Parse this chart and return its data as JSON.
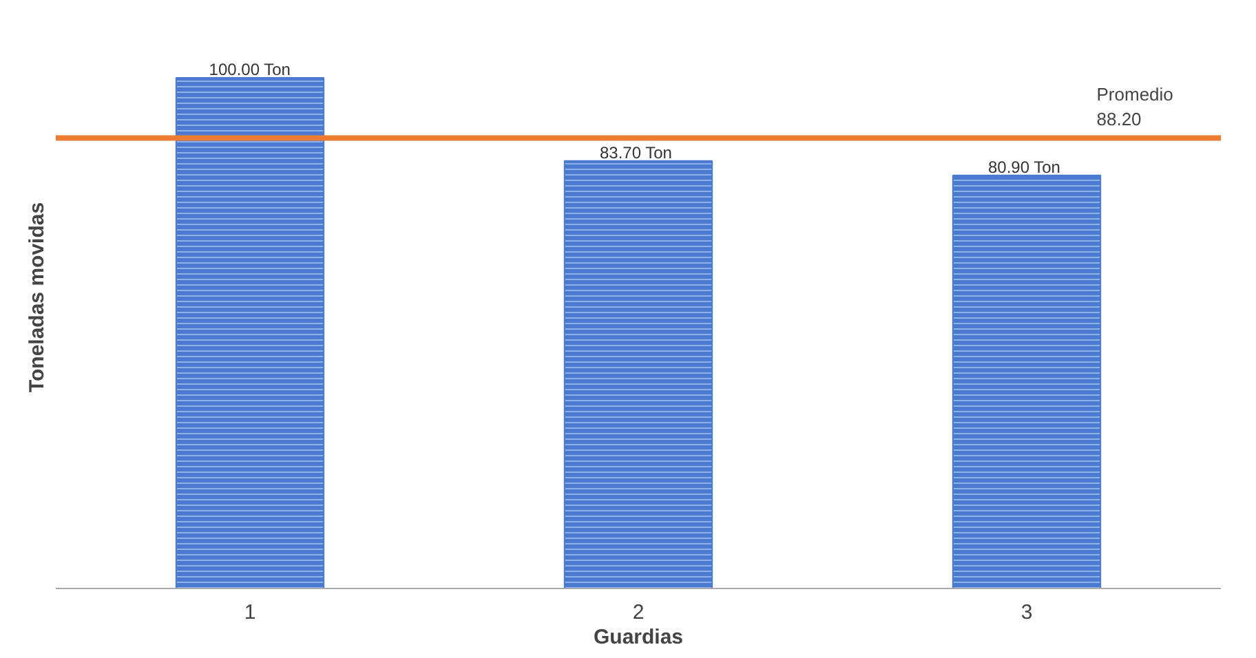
{
  "chart_data": {
    "type": "bar",
    "xlabel": "Guardias",
    "ylabel": "Toneladas movidas",
    "categories": [
      "1",
      "2",
      "3"
    ],
    "values": [
      100.0,
      83.7,
      80.9
    ],
    "color": "#4a7bd0",
    "value_labels": [
      "100.00 Ton",
      "83.70  Ton",
      "80.90  Ton"
    ],
    "ref_lines": [
      {
        "axis": "y",
        "value": 88.2,
        "label": "Promedio\n88.20",
        "color": "#ed7d31"
      }
    ],
    "grid": false
  }
}
